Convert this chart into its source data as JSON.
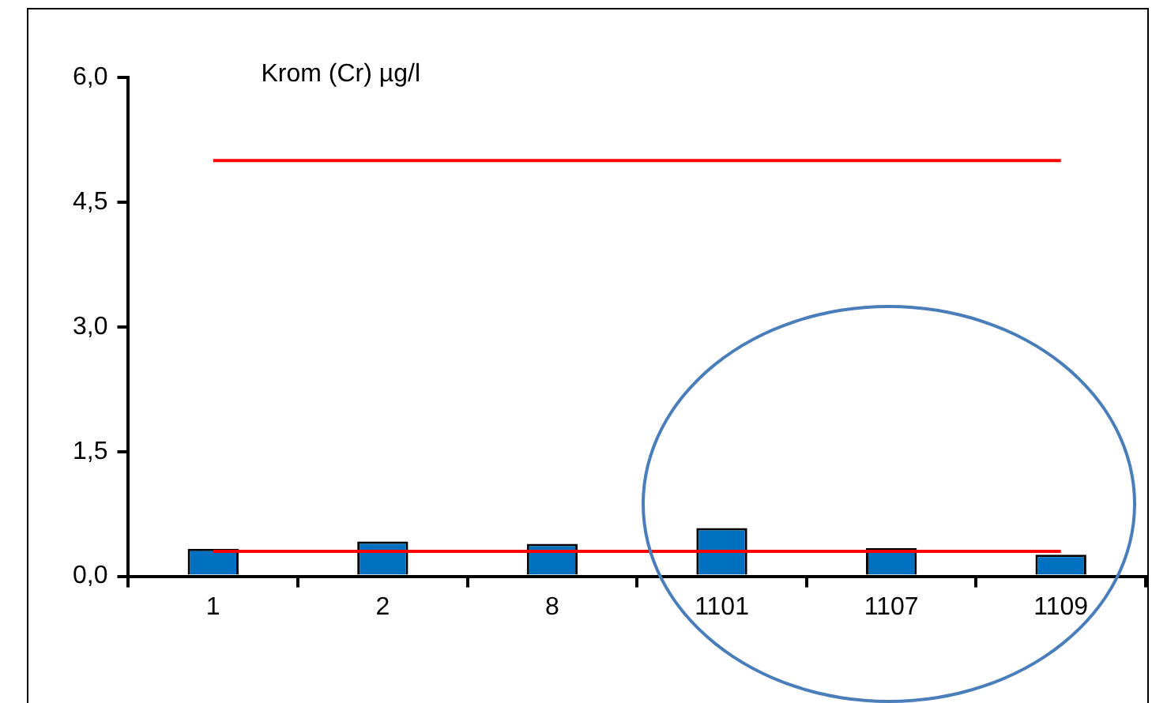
{
  "chart_data": {
    "type": "bar",
    "title": "Krom (Cr) µg/l",
    "categories": [
      "1",
      "2",
      "8",
      "1101",
      "1107",
      "1109"
    ],
    "series": [
      {
        "color": "#0070c0",
        "values": [
          0.33,
          0.42,
          0.39,
          0.58,
          0.34,
          0.26
        ]
      },
      {
        "type": "line",
        "color": "#ff0000",
        "values": [
          5,
          5,
          5,
          5,
          5,
          5
        ]
      },
      {
        "type": "line",
        "color": "#ff0000",
        "values": [
          0.3,
          0.3,
          0.3,
          0.3,
          0.3,
          0.3
        ]
      }
    ],
    "ylim": [
      0,
      6
    ],
    "yticks": [
      {
        "value": 0,
        "label": "0,0"
      },
      {
        "value": 1.5,
        "label": "1,5"
      },
      {
        "value": 3,
        "label": "3,0"
      },
      {
        "value": 4.5,
        "label": "4,5"
      },
      {
        "value": 6,
        "label": "6,0"
      }
    ],
    "grid": false,
    "legend": false,
    "marker": "none",
    "line_style": "solid"
  }
}
